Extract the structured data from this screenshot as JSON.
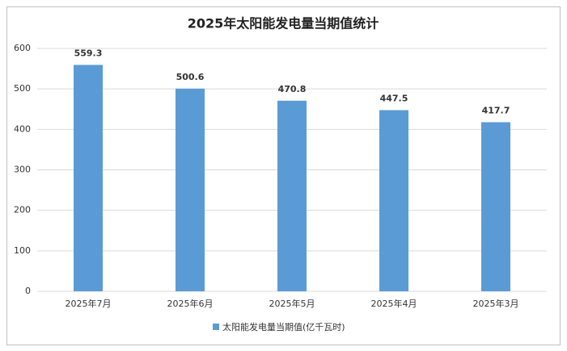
{
  "chart_data": {
    "type": "bar",
    "title": "2025年太阳能发电量当期值统计",
    "categories": [
      "2025年7月",
      "2025年6月",
      "2025年5月",
      "2025年4月",
      "2025年3月"
    ],
    "series": [
      {
        "name": "太阳能发电量当期值(亿千瓦时)",
        "color": "#5b9bd5",
        "values": [
          559.3,
          500.6,
          470.8,
          447.5,
          417.7
        ]
      }
    ],
    "ylim": [
      0,
      600
    ],
    "yticks": [
      0,
      100,
      200,
      300,
      400,
      500,
      600
    ],
    "grid": true,
    "legend": "bottom"
  }
}
